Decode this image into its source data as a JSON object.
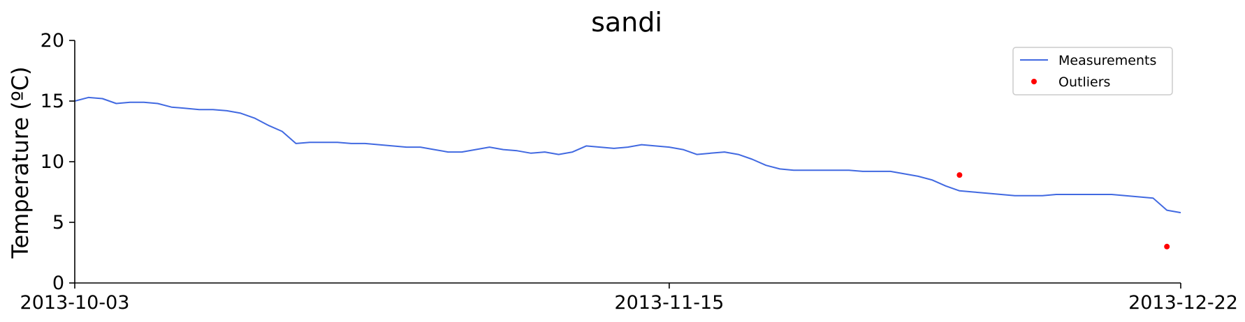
{
  "chart_data": {
    "type": "line",
    "title": "sandi",
    "xlabel": "",
    "ylabel": "Temperature (ºC)",
    "ylim": [
      0,
      20
    ],
    "yticks": [
      "0",
      "5",
      "10",
      "15",
      "20"
    ],
    "xlim": [
      "2013-10-03",
      "2013-12-22"
    ],
    "xticks": [
      "2013-10-03",
      "2013-11-15",
      "2013-12-22"
    ],
    "grid": false,
    "legend_position": "top-right",
    "colors": {
      "measurements": "#4169e1",
      "outliers": "#ff0000"
    },
    "series": [
      {
        "name": "Measurements",
        "kind": "line",
        "color": "#4169e1",
        "points": [
          [
            "2013-10-03",
            15.0
          ],
          [
            "2013-10-04",
            15.3
          ],
          [
            "2013-10-05",
            15.2
          ],
          [
            "2013-10-06",
            14.8
          ],
          [
            "2013-10-07",
            14.9
          ],
          [
            "2013-10-08",
            14.9
          ],
          [
            "2013-10-09",
            14.8
          ],
          [
            "2013-10-10",
            14.5
          ],
          [
            "2013-10-11",
            14.4
          ],
          [
            "2013-10-12",
            14.3
          ],
          [
            "2013-10-13",
            14.3
          ],
          [
            "2013-10-14",
            14.2
          ],
          [
            "2013-10-15",
            14.0
          ],
          [
            "2013-10-16",
            13.6
          ],
          [
            "2013-10-17",
            13.0
          ],
          [
            "2013-10-18",
            12.5
          ],
          [
            "2013-10-19",
            11.5
          ],
          [
            "2013-10-20",
            11.6
          ],
          [
            "2013-10-21",
            11.6
          ],
          [
            "2013-10-22",
            11.6
          ],
          [
            "2013-10-23",
            11.5
          ],
          [
            "2013-10-24",
            11.5
          ],
          [
            "2013-10-25",
            11.4
          ],
          [
            "2013-10-26",
            11.3
          ],
          [
            "2013-10-27",
            11.2
          ],
          [
            "2013-10-28",
            11.2
          ],
          [
            "2013-10-29",
            11.0
          ],
          [
            "2013-10-30",
            10.8
          ],
          [
            "2013-10-31",
            10.8
          ],
          [
            "2013-11-01",
            11.0
          ],
          [
            "2013-11-02",
            11.2
          ],
          [
            "2013-11-03",
            11.0
          ],
          [
            "2013-11-04",
            10.9
          ],
          [
            "2013-11-05",
            10.7
          ],
          [
            "2013-11-06",
            10.8
          ],
          [
            "2013-11-07",
            10.6
          ],
          [
            "2013-11-08",
            10.8
          ],
          [
            "2013-11-09",
            11.3
          ],
          [
            "2013-11-10",
            11.2
          ],
          [
            "2013-11-11",
            11.1
          ],
          [
            "2013-11-12",
            11.2
          ],
          [
            "2013-11-13",
            11.4
          ],
          [
            "2013-11-14",
            11.3
          ],
          [
            "2013-11-15",
            11.2
          ],
          [
            "2013-11-16",
            11.0
          ],
          [
            "2013-11-17",
            10.6
          ],
          [
            "2013-11-18",
            10.7
          ],
          [
            "2013-11-19",
            10.8
          ],
          [
            "2013-11-20",
            10.6
          ],
          [
            "2013-11-21",
            10.2
          ],
          [
            "2013-11-22",
            9.7
          ],
          [
            "2013-11-23",
            9.4
          ],
          [
            "2013-11-24",
            9.3
          ],
          [
            "2013-11-25",
            9.3
          ],
          [
            "2013-11-26",
            9.3
          ],
          [
            "2013-11-27",
            9.3
          ],
          [
            "2013-11-28",
            9.3
          ],
          [
            "2013-11-29",
            9.2
          ],
          [
            "2013-11-30",
            9.2
          ],
          [
            "2013-12-01",
            9.2
          ],
          [
            "2013-12-02",
            9.0
          ],
          [
            "2013-12-03",
            8.8
          ],
          [
            "2013-12-04",
            8.5
          ],
          [
            "2013-12-05",
            8.0
          ],
          [
            "2013-12-06",
            7.6
          ],
          [
            "2013-12-07",
            7.5
          ],
          [
            "2013-12-08",
            7.4
          ],
          [
            "2013-12-09",
            7.3
          ],
          [
            "2013-12-10",
            7.2
          ],
          [
            "2013-12-11",
            7.2
          ],
          [
            "2013-12-12",
            7.2
          ],
          [
            "2013-12-13",
            7.3
          ],
          [
            "2013-12-14",
            7.3
          ],
          [
            "2013-12-15",
            7.3
          ],
          [
            "2013-12-16",
            7.3
          ],
          [
            "2013-12-17",
            7.3
          ],
          [
            "2013-12-18",
            7.2
          ],
          [
            "2013-12-19",
            7.1
          ],
          [
            "2013-12-20",
            7.0
          ],
          [
            "2013-12-21",
            6.0
          ],
          [
            "2013-12-22",
            5.8
          ]
        ]
      },
      {
        "name": "Outliers",
        "kind": "scatter",
        "color": "#ff0000",
        "points": [
          [
            "2013-12-06",
            8.9
          ],
          [
            "2013-12-21",
            3.0
          ]
        ]
      }
    ]
  }
}
